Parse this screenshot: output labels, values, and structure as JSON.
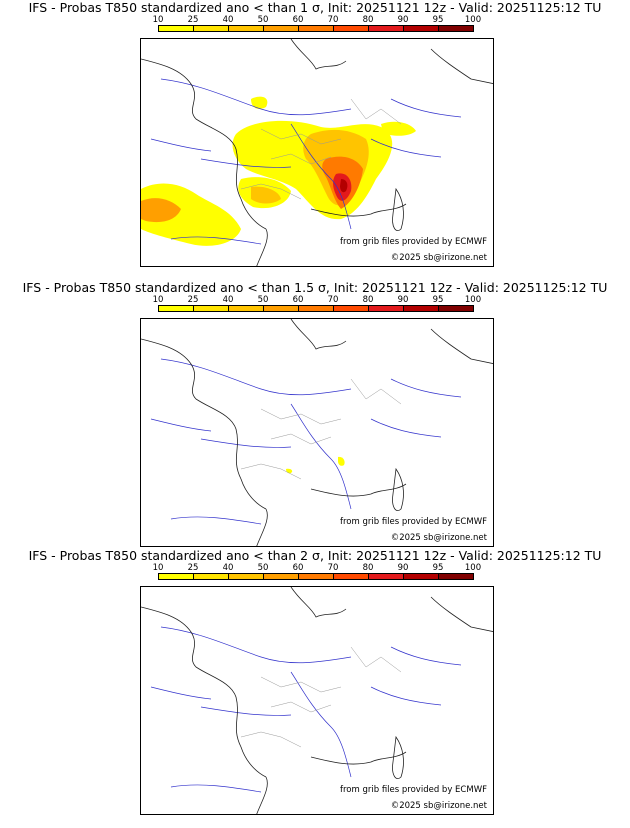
{
  "panels": [
    {
      "title": "IFS - Probas T850  standardized ano < than 1 σ, Init: 20251121 12z - Valid: 20251125:12 TU"
    },
    {
      "title": "IFS - Probas T850  standardized ano < than 1.5 σ, Init: 20251121 12z - Valid: 20251125:12 TU"
    },
    {
      "title": "IFS - Probas T850  standardized ano < than 2 σ, Init: 20251121 12z - Valid: 20251125:12 TU"
    }
  ],
  "colorbar": {
    "labels": [
      "10",
      "25",
      "40",
      "50",
      "60",
      "70",
      "80",
      "90",
      "95",
      "100"
    ],
    "colors": [
      "#ffff00",
      "#ffe400",
      "#ffc400",
      "#ff9f00",
      "#ff7a00",
      "#ff4a00",
      "#e31a1c",
      "#b30000",
      "#800000"
    ]
  },
  "credit": {
    "source": "from grib files provided by ECMWF",
    "copyright": "©2025 sb@irizone.net"
  }
}
